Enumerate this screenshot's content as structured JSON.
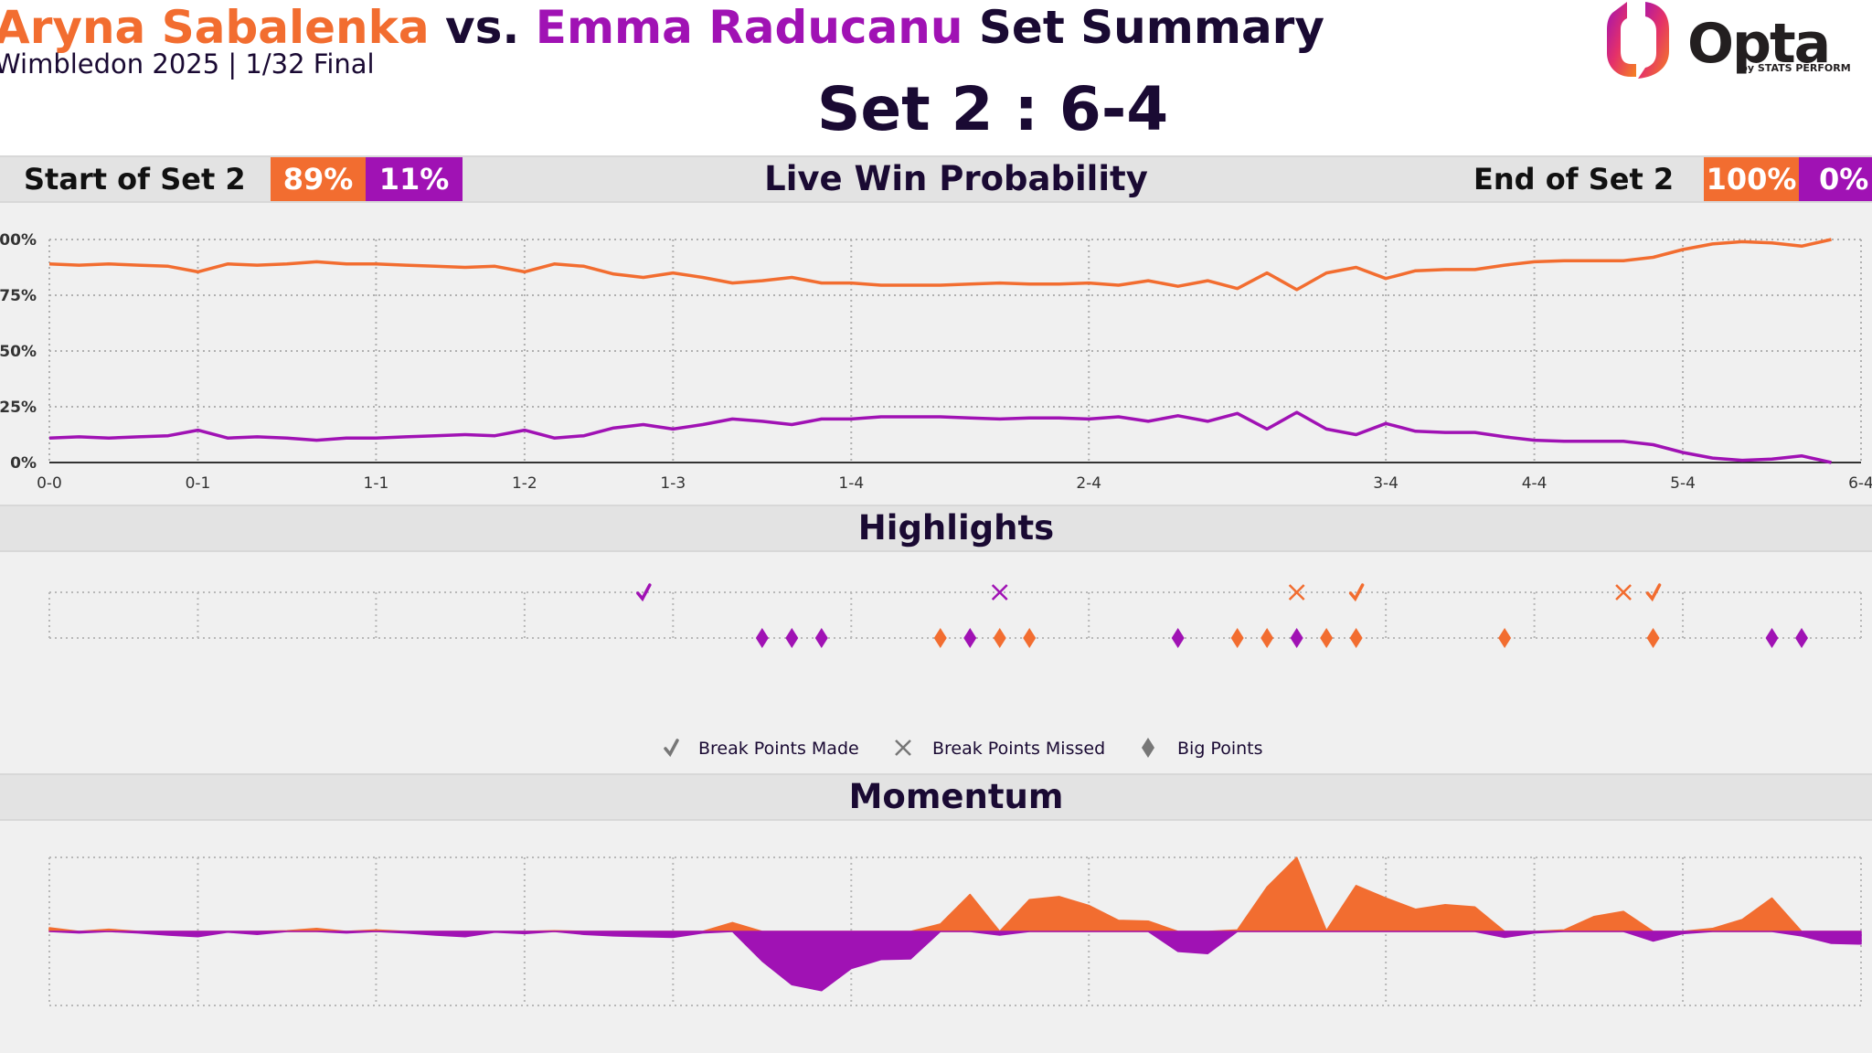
{
  "header": {
    "player1": "Aryna Sabalenka",
    "vs": " vs. ",
    "player2": "Emma Raducanu",
    "suffix": " Set Summary",
    "subtitle": "Wimbledon 2025 | 1/32 Final",
    "set_score": "Set 2 : 6-4"
  },
  "logo": {
    "word": "Opta",
    "sub": "by STATS PERFORM"
  },
  "colors": {
    "player1": "#f26d30",
    "player2": "#a012b4",
    "text": "#1a0a33",
    "panel": "#f0f0f0",
    "band": "#e3e3e3"
  },
  "bands": {
    "win_prob": "Live Win Probability",
    "highlights": "Highlights",
    "momentum": "Momentum",
    "start_label": "Start of Set 2",
    "start_p1": "89%",
    "start_p2": "11%",
    "end_label": "End of Set 2",
    "end_p1": "100%",
    "end_p2": "0%"
  },
  "chart_data": [
    {
      "type": "line",
      "name": "win_probability",
      "x_tick_labels": [
        {
          "x": 0,
          "label": "0-0"
        },
        {
          "x": 5,
          "label": "0-1"
        },
        {
          "x": 11,
          "label": "1-1"
        },
        {
          "x": 16,
          "label": "1-2"
        },
        {
          "x": 21,
          "label": "1-3"
        },
        {
          "x": 27,
          "label": "1-4"
        },
        {
          "x": 35,
          "label": "2-4"
        },
        {
          "x": 45,
          "label": "3-4"
        },
        {
          "x": 50,
          "label": "4-4"
        },
        {
          "x": 55,
          "label": "5-4"
        },
        {
          "x": 61,
          "label": "6-4"
        }
      ],
      "xlim": [
        0,
        61
      ],
      "ylim": [
        0,
        100
      ],
      "y_ticks": [
        0,
        25,
        50,
        75,
        100
      ],
      "y_tick_labels": [
        "0%",
        "25%",
        "50%",
        "75%",
        "100%"
      ],
      "grid": true,
      "series": [
        {
          "player": "player1",
          "values": [
            89,
            88.5,
            89,
            88.5,
            88,
            85.5,
            89,
            88.5,
            89,
            90,
            89,
            89,
            88.5,
            88,
            87.5,
            88,
            85.5,
            89,
            88,
            84.5,
            83,
            85,
            83,
            80.5,
            81.5,
            83,
            80.5,
            80.5,
            79.5,
            79.5,
            79.5,
            80,
            80.5,
            80,
            80,
            80.5,
            79.5,
            81.5,
            79,
            81.5,
            78,
            85,
            77.5,
            85,
            87.5,
            82.5,
            86,
            86.5,
            86.5,
            88.5,
            90,
            90.5,
            90.5,
            90.5,
            92,
            95.5,
            98,
            99,
            98.5,
            97,
            100
          ]
        },
        {
          "player": "player2",
          "values": [
            11,
            11.5,
            11,
            11.5,
            12,
            14.5,
            11,
            11.5,
            11,
            10,
            11,
            11,
            11.5,
            12,
            12.5,
            12,
            14.5,
            11,
            12,
            15.5,
            17,
            15,
            17,
            19.5,
            18.5,
            17,
            19.5,
            19.5,
            20.5,
            20.5,
            20.5,
            20,
            19.5,
            20,
            20,
            19.5,
            20.5,
            18.5,
            21,
            18.5,
            22,
            15,
            22.5,
            15,
            12.5,
            17.5,
            14,
            13.5,
            13.5,
            11.5,
            10,
            9.5,
            9.5,
            9.5,
            8,
            4.5,
            2,
            1,
            1.5,
            3,
            0
          ]
        }
      ]
    },
    {
      "type": "scatter",
      "name": "highlights",
      "legend": [
        {
          "marker": "check",
          "label": "Break Points Made"
        },
        {
          "marker": "cross",
          "label": "Break Points Missed"
        },
        {
          "marker": "diamond",
          "label": "Big Points"
        }
      ],
      "break_points_made": [
        {
          "x": 20,
          "player": "player2"
        },
        {
          "x": 44,
          "player": "player1"
        },
        {
          "x": 54,
          "player": "player1"
        }
      ],
      "break_points_missed": [
        {
          "x": 32,
          "player": "player2"
        },
        {
          "x": 42,
          "player": "player1"
        },
        {
          "x": 53,
          "player": "player1"
        }
      ],
      "big_points": [
        {
          "x": 24,
          "player": "player2"
        },
        {
          "x": 25,
          "player": "player2"
        },
        {
          "x": 26,
          "player": "player2"
        },
        {
          "x": 30,
          "player": "player1"
        },
        {
          "x": 31,
          "player": "player2"
        },
        {
          "x": 32,
          "player": "player1"
        },
        {
          "x": 33,
          "player": "player1"
        },
        {
          "x": 38,
          "player": "player2"
        },
        {
          "x": 40,
          "player": "player1"
        },
        {
          "x": 41,
          "player": "player1"
        },
        {
          "x": 42,
          "player": "player2"
        },
        {
          "x": 43,
          "player": "player1"
        },
        {
          "x": 44,
          "player": "player1"
        },
        {
          "x": 49,
          "player": "player1"
        },
        {
          "x": 54,
          "player": "player1"
        },
        {
          "x": 58,
          "player": "player2"
        },
        {
          "x": 59,
          "player": "player2"
        }
      ]
    },
    {
      "type": "area",
      "name": "momentum",
      "xlim": [
        0,
        61
      ],
      "ylim": [
        -1,
        1
      ],
      "values": [
        0.05,
        -0.02,
        0.03,
        -0.02,
        -0.05,
        -0.07,
        -0.01,
        -0.04,
        0.01,
        0.04,
        -0.02,
        0.02,
        -0.02,
        -0.05,
        -0.07,
        -0.01,
        -0.03,
        0.01,
        -0.04,
        -0.06,
        -0.07,
        -0.08,
        -0.02,
        0.12,
        -0.4,
        -0.72,
        -0.8,
        -0.5,
        -0.38,
        -0.37,
        0.1,
        0.5,
        -0.05,
        0.43,
        0.47,
        0.35,
        0.15,
        0.14,
        -0.27,
        -0.3,
        0.02,
        0.6,
        1,
        0.01,
        0.62,
        0.45,
        0.3,
        0.36,
        0.33,
        -0.08,
        -0.02,
        0.02,
        0.2,
        0.27,
        -0.13,
        -0.03,
        0.04,
        0.16,
        0.45,
        -0.06,
        -0.16,
        -0.17
      ]
    }
  ]
}
